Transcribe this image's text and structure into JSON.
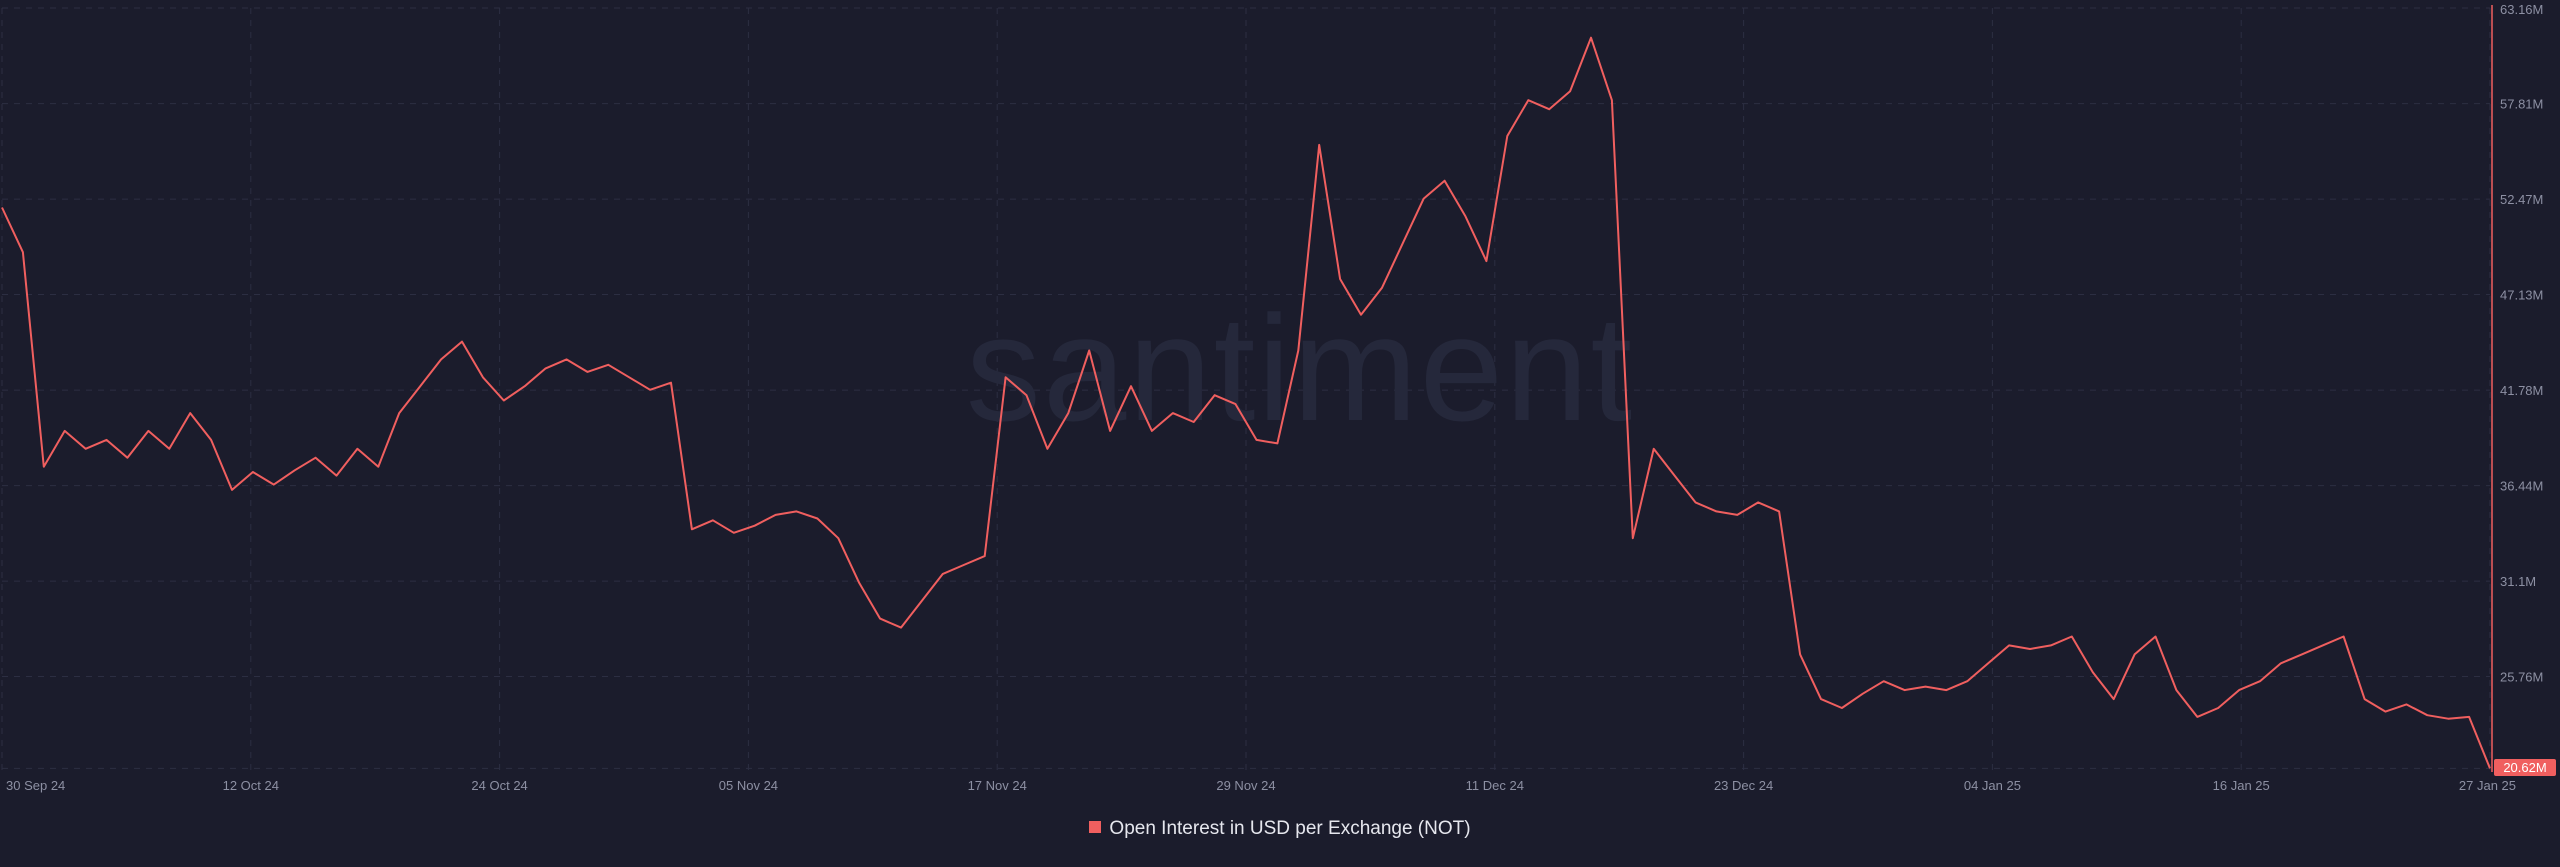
{
  "colors": {
    "background": "#1b1c2c",
    "series": "#f05f5f",
    "grid": "#2c2e42",
    "tick_text": "#8d90a3",
    "watermark": "#25283b",
    "last_value_bg": "#f05f5f"
  },
  "watermark": "santiment",
  "chart_data": {
    "type": "line",
    "legend_position": "bottom-center",
    "grid": true,
    "x_tick_labels": [
      "30 Sep 24",
      "12 Oct 24",
      "24 Oct 24",
      "05 Nov 24",
      "17 Nov 24",
      "29 Nov 24",
      "11 Dec 24",
      "23 Dec 24",
      "04 Jan 25",
      "16 Jan 25",
      "27 Jan 25"
    ],
    "y_tick_labels": [
      "63.16M",
      "57.81M",
      "52.47M",
      "47.13M",
      "41.78M",
      "36.44M",
      "31.1M",
      "25.76M",
      "20.62M"
    ],
    "y_ticks": [
      63.16,
      57.81,
      52.47,
      47.13,
      41.78,
      36.44,
      31.1,
      25.76,
      20.62
    ],
    "ylim": [
      20.42,
      63.16
    ],
    "xlim": [
      "2024-09-30",
      "2025-01-27"
    ],
    "last_value_label": "20.62M",
    "series": [
      {
        "name": "Open Interest in USD per Exchange (NOT)",
        "color": "#f05f5f",
        "points": [
          [
            "2024-09-30",
            52.0
          ],
          [
            "2024-10-01",
            49.5
          ],
          [
            "2024-10-02",
            37.5
          ],
          [
            "2024-10-03",
            39.5
          ],
          [
            "2024-10-04",
            38.5
          ],
          [
            "2024-10-05",
            39.0
          ],
          [
            "2024-10-06",
            38.0
          ],
          [
            "2024-10-07",
            39.5
          ],
          [
            "2024-10-08",
            38.5
          ],
          [
            "2024-10-09",
            40.5
          ],
          [
            "2024-10-10",
            39.0
          ],
          [
            "2024-10-11",
            36.2
          ],
          [
            "2024-10-12",
            37.2
          ],
          [
            "2024-10-13",
            36.5
          ],
          [
            "2024-10-14",
            37.3
          ],
          [
            "2024-10-15",
            38.0
          ],
          [
            "2024-10-16",
            37.0
          ],
          [
            "2024-10-17",
            38.5
          ],
          [
            "2024-10-18",
            37.5
          ],
          [
            "2024-10-19",
            40.5
          ],
          [
            "2024-10-20",
            42.0
          ],
          [
            "2024-10-21",
            43.5
          ],
          [
            "2024-10-22",
            44.5
          ],
          [
            "2024-10-23",
            42.5
          ],
          [
            "2024-10-24",
            41.2
          ],
          [
            "2024-10-25",
            42.0
          ],
          [
            "2024-10-26",
            43.0
          ],
          [
            "2024-10-27",
            43.5
          ],
          [
            "2024-10-28",
            42.8
          ],
          [
            "2024-10-29",
            43.2
          ],
          [
            "2024-10-30",
            42.5
          ],
          [
            "2024-10-31",
            41.8
          ],
          [
            "2024-11-01",
            42.2
          ],
          [
            "2024-11-02",
            34.0
          ],
          [
            "2024-11-03",
            34.5
          ],
          [
            "2024-11-04",
            33.8
          ],
          [
            "2024-11-05",
            34.2
          ],
          [
            "2024-11-06",
            34.8
          ],
          [
            "2024-11-07",
            35.0
          ],
          [
            "2024-11-08",
            34.6
          ],
          [
            "2024-11-09",
            33.5
          ],
          [
            "2024-11-10",
            31.0
          ],
          [
            "2024-11-11",
            29.0
          ],
          [
            "2024-11-12",
            28.5
          ],
          [
            "2024-11-13",
            30.0
          ],
          [
            "2024-11-14",
            31.5
          ],
          [
            "2024-11-15",
            32.0
          ],
          [
            "2024-11-16",
            32.5
          ],
          [
            "2024-11-17",
            42.5
          ],
          [
            "2024-11-18",
            41.5
          ],
          [
            "2024-11-19",
            38.5
          ],
          [
            "2024-11-20",
            40.5
          ],
          [
            "2024-11-21",
            44.0
          ],
          [
            "2024-11-22",
            39.5
          ],
          [
            "2024-11-23",
            42.0
          ],
          [
            "2024-11-24",
            39.5
          ],
          [
            "2024-11-25",
            40.5
          ],
          [
            "2024-11-26",
            40.0
          ],
          [
            "2024-11-27",
            41.5
          ],
          [
            "2024-11-28",
            41.0
          ],
          [
            "2024-11-29",
            39.0
          ],
          [
            "2024-11-30",
            38.8
          ],
          [
            "2024-12-01",
            44.0
          ],
          [
            "2024-12-02",
            55.5
          ],
          [
            "2024-12-03",
            48.0
          ],
          [
            "2024-12-04",
            46.0
          ],
          [
            "2024-12-05",
            47.5
          ],
          [
            "2024-12-06",
            50.0
          ],
          [
            "2024-12-07",
            52.5
          ],
          [
            "2024-12-08",
            53.5
          ],
          [
            "2024-12-09",
            51.5
          ],
          [
            "2024-12-10",
            49.0
          ],
          [
            "2024-12-11",
            56.0
          ],
          [
            "2024-12-12",
            58.0
          ],
          [
            "2024-12-13",
            57.5
          ],
          [
            "2024-12-14",
            58.5
          ],
          [
            "2024-12-15",
            61.5
          ],
          [
            "2024-12-16",
            58.0
          ],
          [
            "2024-12-17",
            33.5
          ],
          [
            "2024-12-18",
            38.5
          ],
          [
            "2024-12-19",
            37.0
          ],
          [
            "2024-12-20",
            35.5
          ],
          [
            "2024-12-21",
            35.0
          ],
          [
            "2024-12-22",
            34.8
          ],
          [
            "2024-12-23",
            35.5
          ],
          [
            "2024-12-24",
            35.0
          ],
          [
            "2024-12-25",
            27.0
          ],
          [
            "2024-12-26",
            24.5
          ],
          [
            "2024-12-27",
            24.0
          ],
          [
            "2024-12-28",
            24.8
          ],
          [
            "2024-12-29",
            25.5
          ],
          [
            "2024-12-30",
            25.0
          ],
          [
            "2024-12-31",
            25.2
          ],
          [
            "2025-01-01",
            25.0
          ],
          [
            "2025-01-02",
            25.5
          ],
          [
            "2025-01-03",
            26.5
          ],
          [
            "2025-01-04",
            27.5
          ],
          [
            "2025-01-05",
            27.3
          ],
          [
            "2025-01-06",
            27.5
          ],
          [
            "2025-01-07",
            28.0
          ],
          [
            "2025-01-08",
            26.0
          ],
          [
            "2025-01-09",
            24.5
          ],
          [
            "2025-01-10",
            27.0
          ],
          [
            "2025-01-11",
            28.0
          ],
          [
            "2025-01-12",
            25.0
          ],
          [
            "2025-01-13",
            23.5
          ],
          [
            "2025-01-14",
            24.0
          ],
          [
            "2025-01-15",
            25.0
          ],
          [
            "2025-01-16",
            25.5
          ],
          [
            "2025-01-17",
            26.5
          ],
          [
            "2025-01-18",
            27.0
          ],
          [
            "2025-01-19",
            27.5
          ],
          [
            "2025-01-20",
            28.0
          ],
          [
            "2025-01-21",
            24.5
          ],
          [
            "2025-01-22",
            23.8
          ],
          [
            "2025-01-23",
            24.2
          ],
          [
            "2025-01-24",
            23.6
          ],
          [
            "2025-01-25",
            23.4
          ],
          [
            "2025-01-26",
            23.5
          ],
          [
            "2025-01-27",
            20.62
          ]
        ]
      }
    ]
  }
}
